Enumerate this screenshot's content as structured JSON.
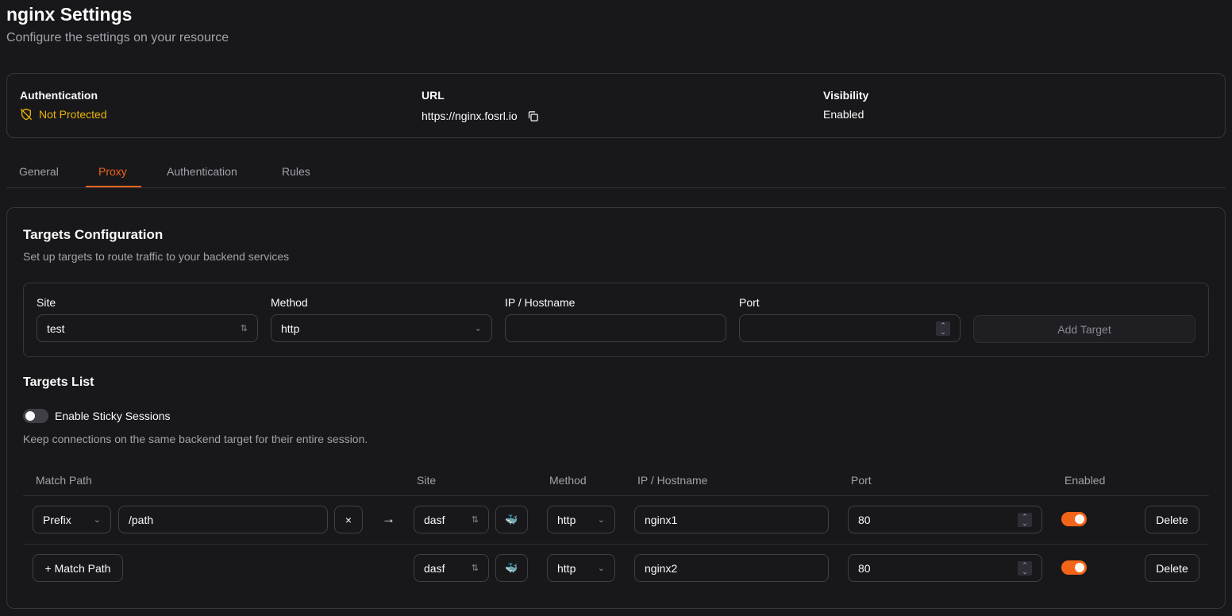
{
  "header": {
    "title": "nginx Settings",
    "subtitle": "Configure the settings on your resource"
  },
  "info": {
    "auth_label": "Authentication",
    "auth_value": "Not Protected",
    "url_label": "URL",
    "url_value": "https://nginx.fosrl.io",
    "visibility_label": "Visibility",
    "visibility_value": "Enabled"
  },
  "tabs": [
    {
      "label": "General"
    },
    {
      "label": "Proxy",
      "active": true
    },
    {
      "label": "Authentication"
    },
    {
      "label": "Rules"
    }
  ],
  "targets": {
    "title": "Targets Configuration",
    "description": "Set up targets to route traffic to your backend services",
    "form": {
      "site_label": "Site",
      "site_value": "test",
      "method_label": "Method",
      "method_value": "http",
      "ip_label": "IP / Hostname",
      "ip_value": "",
      "port_label": "Port",
      "port_value": "",
      "add_button": "Add Target"
    },
    "list_title": "Targets List",
    "sticky_label": "Enable Sticky Sessions",
    "sticky_enabled": false,
    "sticky_desc": "Keep connections on the same backend target for their entire session.",
    "columns": [
      "Match Path",
      "Site",
      "Method",
      "IP / Hostname",
      "Port",
      "Enabled"
    ],
    "rows": [
      {
        "match_type": "Prefix",
        "path": "/path",
        "clear": "×",
        "arrow": "→",
        "site": "dasf",
        "method": "http",
        "host": "nginx1",
        "port": "80",
        "enabled": true,
        "delete": "Delete"
      },
      {
        "add_match": "+ Match Path",
        "site": "dasf",
        "method": "http",
        "host": "nginx2",
        "port": "80",
        "enabled": true,
        "delete": "Delete"
      }
    ]
  },
  "colors": {
    "accent": "#f26419",
    "warning": "#eab308",
    "background": "#18181b"
  }
}
